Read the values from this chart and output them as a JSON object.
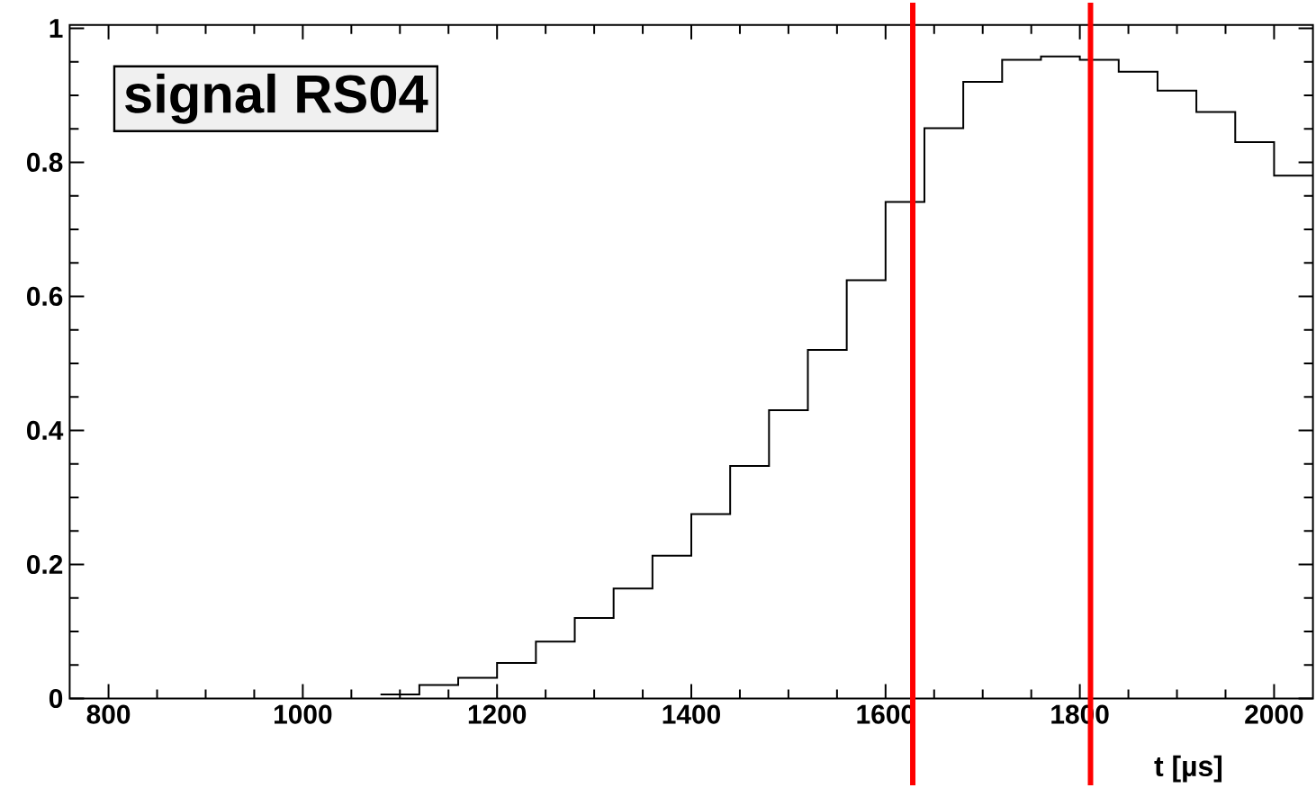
{
  "chart_data": {
    "type": "histogram",
    "title": "signal RS04",
    "xlabel": "t [µs]",
    "bins": [
      1080,
      1120,
      1160,
      1200,
      1240,
      1280,
      1320,
      1360,
      1400,
      1440,
      1480,
      1520,
      1560,
      1600,
      1640,
      1680,
      1720,
      1760,
      1800,
      1840,
      1880,
      1920,
      1960,
      2000,
      2040
    ],
    "values": [
      0.006,
      0.02,
      0.031,
      0.053,
      0.085,
      0.12,
      0.164,
      0.213,
      0.275,
      0.347,
      0.43,
      0.52,
      0.624,
      0.741,
      0.851,
      0.92,
      0.953,
      0.958,
      0.953,
      0.935,
      0.907,
      0.875,
      0.83,
      0.78
    ],
    "color": "#000000",
    "xlim": [
      760,
      2040
    ],
    "ylim": [
      0,
      1.005
    ],
    "xticks": [
      800,
      1000,
      1200,
      1400,
      1600,
      1800,
      2000
    ],
    "yticks": [
      0,
      0.2,
      0.4,
      0.6,
      0.8,
      1
    ],
    "ref_lines": [
      {
        "axis": "x",
        "value": 1628,
        "color": "#ff0000"
      },
      {
        "axis": "x",
        "value": 1811,
        "color": "#ff0000"
      }
    ],
    "grid": false
  }
}
